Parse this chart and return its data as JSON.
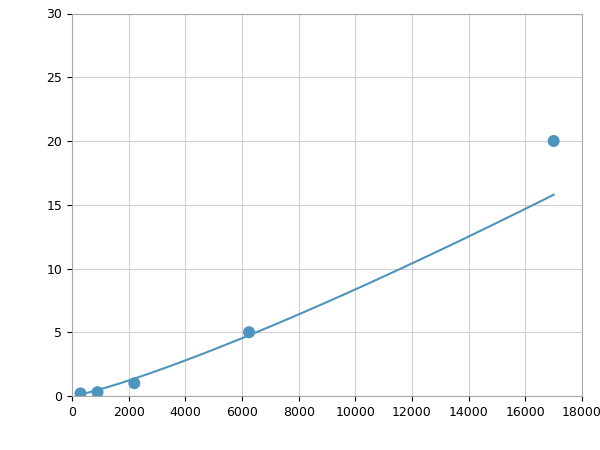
{
  "x": [
    300,
    900,
    2200,
    6250,
    17000
  ],
  "y": [
    0.2,
    0.3,
    1.0,
    5.0,
    20.0
  ],
  "line_color": "#4d94be",
  "marker_color": "#4d94be",
  "marker_size": 5,
  "line_width": 1.5,
  "xlim": [
    0,
    18000
  ],
  "ylim": [
    0,
    30
  ],
  "xticks": [
    0,
    2000,
    4000,
    6000,
    8000,
    10000,
    12000,
    14000,
    16000,
    18000
  ],
  "yticks": [
    0,
    5,
    10,
    15,
    20,
    25,
    30
  ],
  "grid_color": "#d0d0d0",
  "background_color": "#ffffff",
  "spine_color": "#aaaaaa",
  "tick_fontsize": 9,
  "figsize": [
    6.0,
    4.5
  ],
  "dpi": 100
}
